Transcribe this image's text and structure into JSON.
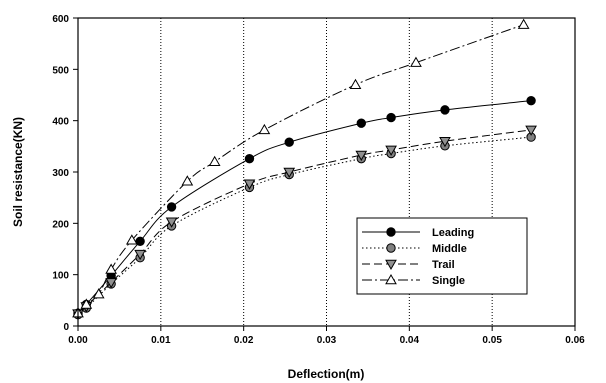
{
  "chart_data": {
    "type": "line",
    "xlabel": "Deflection(m)",
    "ylabel": "Soil resistance(KN)",
    "xlim": [
      0,
      0.06
    ],
    "ylim": [
      0,
      600
    ],
    "xticks": [
      "0.00",
      "0.01",
      "0.02",
      "0.03",
      "0.04",
      "0.05",
      "0.06"
    ],
    "yticks": [
      "0",
      "100",
      "200",
      "300",
      "400",
      "500",
      "600"
    ],
    "xtick_values": [
      0,
      0.01,
      0.02,
      0.03,
      0.04,
      0.05,
      0.06
    ],
    "ytick_values": [
      0,
      100,
      200,
      300,
      400,
      500,
      600
    ],
    "grid": "vertical dotted",
    "legend_position": "lower-right",
    "series": [
      {
        "name": "Leading",
        "marker": "circle",
        "marker_fill": "#000000",
        "line_style": "solid",
        "x": [
          0,
          0.001,
          0.004,
          0.0075,
          0.0113,
          0.0207,
          0.0255,
          0.0342,
          0.0378,
          0.0443,
          0.0547
        ],
        "y": [
          25,
          42,
          98,
          165,
          232,
          326,
          358,
          395,
          406,
          421,
          439
        ]
      },
      {
        "name": "Middle",
        "marker": "circle",
        "marker_fill": "#808080",
        "line_style": "dotted",
        "x": [
          0,
          0.001,
          0.004,
          0.0075,
          0.0113,
          0.0207,
          0.0255,
          0.0342,
          0.0378,
          0.0443,
          0.0547
        ],
        "y": [
          22,
          35,
          82,
          133,
          195,
          270,
          295,
          326,
          336,
          351,
          368
        ]
      },
      {
        "name": "Trail",
        "marker": "triangle-down",
        "marker_fill": "#909090",
        "line_style": "dashed",
        "x": [
          0,
          0.001,
          0.004,
          0.0075,
          0.0113,
          0.0207,
          0.0255,
          0.0342,
          0.0378,
          0.0443,
          0.0547
        ],
        "y": [
          24,
          38,
          85,
          140,
          203,
          277,
          300,
          333,
          343,
          360,
          382
        ]
      },
      {
        "name": "Single",
        "marker": "triangle-up",
        "marker_fill": "#ffffff",
        "line_style": "dash-dot",
        "x": [
          0,
          0.001,
          0.0025,
          0.004,
          0.0065,
          0.0132,
          0.0165,
          0.0225,
          0.0335,
          0.0408,
          0.0538
        ],
        "y": [
          25,
          42,
          62,
          110,
          167,
          282,
          320,
          382,
          470,
          513,
          587
        ]
      }
    ]
  }
}
